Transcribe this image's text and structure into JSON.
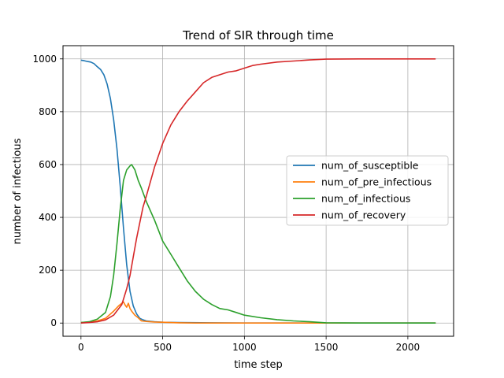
{
  "chart_data": {
    "type": "line",
    "title": "Trend of SIR through time",
    "xlabel": "time step",
    "ylabel": "number of infectious",
    "xlim": [
      -110,
      2280
    ],
    "ylim": [
      -50,
      1050
    ],
    "xticks": [
      0,
      500,
      1000,
      1500,
      2000
    ],
    "yticks": [
      0,
      200,
      400,
      600,
      800,
      1000
    ],
    "grid": true,
    "legend_position": "center-right",
    "series": [
      {
        "name": "num_of_susceptible",
        "color": "#1f77b4",
        "points": [
          [
            0,
            995
          ],
          [
            20,
            993
          ],
          [
            40,
            990
          ],
          [
            60,
            988
          ],
          [
            80,
            982
          ],
          [
            100,
            970
          ],
          [
            120,
            960
          ],
          [
            140,
            940
          ],
          [
            160,
            905
          ],
          [
            180,
            850
          ],
          [
            200,
            770
          ],
          [
            220,
            660
          ],
          [
            240,
            520
          ],
          [
            260,
            360
          ],
          [
            280,
            220
          ],
          [
            300,
            120
          ],
          [
            320,
            65
          ],
          [
            340,
            35
          ],
          [
            360,
            18
          ],
          [
            380,
            12
          ],
          [
            400,
            8
          ],
          [
            450,
            5
          ],
          [
            500,
            3
          ],
          [
            600,
            2
          ],
          [
            800,
            1
          ],
          [
            1000,
            0
          ],
          [
            1500,
            0
          ],
          [
            2170,
            0
          ]
        ]
      },
      {
        "name": "num_of_pre_infectious",
        "color": "#ff7f0e",
        "points": [
          [
            0,
            2
          ],
          [
            50,
            4
          ],
          [
            100,
            8
          ],
          [
            150,
            18
          ],
          [
            200,
            45
          ],
          [
            230,
            65
          ],
          [
            250,
            75
          ],
          [
            260,
            80
          ],
          [
            270,
            68
          ],
          [
            280,
            60
          ],
          [
            290,
            75
          ],
          [
            300,
            55
          ],
          [
            310,
            45
          ],
          [
            330,
            30
          ],
          [
            350,
            20
          ],
          [
            370,
            8
          ],
          [
            400,
            6
          ],
          [
            450,
            4
          ],
          [
            500,
            3
          ],
          [
            600,
            1
          ],
          [
            700,
            0
          ],
          [
            1000,
            0
          ],
          [
            1500,
            0
          ],
          [
            2170,
            0
          ]
        ]
      },
      {
        "name": "num_of_infectious",
        "color": "#2ca02c",
        "points": [
          [
            0,
            2
          ],
          [
            50,
            5
          ],
          [
            100,
            15
          ],
          [
            150,
            40
          ],
          [
            180,
            100
          ],
          [
            200,
            180
          ],
          [
            220,
            300
          ],
          [
            240,
            430
          ],
          [
            260,
            540
          ],
          [
            280,
            580
          ],
          [
            300,
            595
          ],
          [
            310,
            600
          ],
          [
            330,
            580
          ],
          [
            350,
            540
          ],
          [
            370,
            510
          ],
          [
            400,
            460
          ],
          [
            450,
            390
          ],
          [
            500,
            310
          ],
          [
            550,
            260
          ],
          [
            600,
            210
          ],
          [
            650,
            160
          ],
          [
            700,
            120
          ],
          [
            750,
            90
          ],
          [
            800,
            70
          ],
          [
            850,
            55
          ],
          [
            900,
            50
          ],
          [
            950,
            40
          ],
          [
            1000,
            30
          ],
          [
            1100,
            20
          ],
          [
            1200,
            13
          ],
          [
            1300,
            8
          ],
          [
            1400,
            5
          ],
          [
            1500,
            1
          ],
          [
            1700,
            0
          ],
          [
            2170,
            0
          ]
        ]
      },
      {
        "name": "num_of_recovery",
        "color": "#d62728",
        "points": [
          [
            0,
            0
          ],
          [
            50,
            2
          ],
          [
            100,
            5
          ],
          [
            150,
            12
          ],
          [
            200,
            30
          ],
          [
            250,
            70
          ],
          [
            280,
            130
          ],
          [
            300,
            180
          ],
          [
            320,
            250
          ],
          [
            340,
            320
          ],
          [
            360,
            380
          ],
          [
            380,
            440
          ],
          [
            400,
            480
          ],
          [
            450,
            590
          ],
          [
            500,
            680
          ],
          [
            550,
            750
          ],
          [
            600,
            800
          ],
          [
            650,
            840
          ],
          [
            700,
            875
          ],
          [
            750,
            910
          ],
          [
            800,
            930
          ],
          [
            850,
            940
          ],
          [
            900,
            950
          ],
          [
            950,
            955
          ],
          [
            1000,
            965
          ],
          [
            1050,
            975
          ],
          [
            1100,
            980
          ],
          [
            1200,
            988
          ],
          [
            1300,
            992
          ],
          [
            1400,
            996
          ],
          [
            1500,
            999
          ],
          [
            1700,
            1000
          ],
          [
            2170,
            1000
          ]
        ]
      }
    ]
  }
}
